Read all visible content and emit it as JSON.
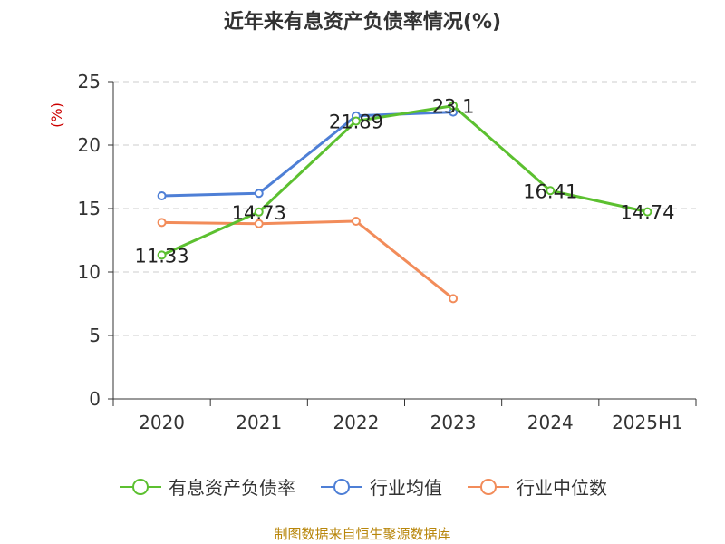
{
  "title": "近年来有息资产负债率情况(%)",
  "source": "制图数据来自恒生聚源数据库",
  "chart_data": {
    "type": "line",
    "title": "近年来有息资产负债率情况(%)",
    "ylabel": "(%)",
    "xlabel": "",
    "ylim": [
      0,
      25
    ],
    "yticks": [
      0,
      5,
      10,
      15,
      20,
      25
    ],
    "grid": true,
    "legend_position": "bottom",
    "categories": [
      "2020",
      "2021",
      "2022",
      "2023",
      "2024",
      "2025H1"
    ],
    "series": [
      {
        "name": "有息资产负债率",
        "color": "#5cc030",
        "values": [
          11.33,
          14.73,
          21.89,
          23.1,
          16.41,
          14.74
        ],
        "labels": [
          "11.33",
          "14.73",
          "21.89",
          "23.1",
          "16.41",
          "14.74"
        ]
      },
      {
        "name": "行业均值",
        "color": "#4e7fd6",
        "values": [
          16.0,
          16.2,
          22.3,
          22.6,
          null,
          null
        ]
      },
      {
        "name": "行业中位数",
        "color": "#f28c5a",
        "values": [
          13.9,
          13.8,
          14.0,
          7.9,
          null,
          null
        ]
      }
    ]
  }
}
